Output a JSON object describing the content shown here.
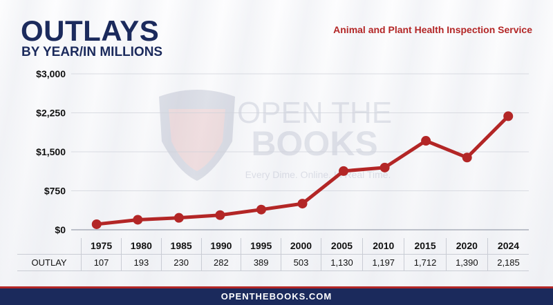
{
  "header": {
    "title": "OUTLAYS",
    "subtitle": "BY YEAR/IN MILLIONS",
    "agency": "Animal and Plant Health Inspection Service"
  },
  "watermark": {
    "line1": "OPEN THE",
    "line2": "BOOKS",
    "tagline": "Every Dime. Online. In Real Time."
  },
  "table": {
    "row_label": "OUTLAY",
    "years": [
      "1975",
      "1980",
      "1985",
      "1990",
      "1995",
      "2000",
      "2005",
      "2010",
      "2015",
      "2020",
      "2024"
    ],
    "values": [
      "107",
      "193",
      "230",
      "282",
      "389",
      "503",
      "1,130",
      "1,197",
      "1,712",
      "1,390",
      "2,185"
    ]
  },
  "footer": {
    "url": "OPENTHEBOOKS.COM"
  },
  "colors": {
    "navy": "#1b2a5c",
    "red": "#b32626",
    "grid": "#cfd2da"
  },
  "chart_data": {
    "type": "line",
    "x": [
      "1975",
      "1980",
      "1985",
      "1990",
      "1995",
      "2000",
      "2005",
      "2010",
      "2015",
      "2020",
      "2024"
    ],
    "series": [
      {
        "values": [
          107,
          193,
          230,
          282,
          389,
          503,
          1130,
          1197,
          1712,
          1390,
          2185
        ]
      }
    ],
    "ylim": [
      0,
      3000
    ],
    "yticks": [
      0,
      750,
      1500,
      2250,
      3000
    ],
    "ytick_labels": [
      "$0",
      "$750",
      "$1,500",
      "$2,250",
      "$3,000"
    ],
    "grid": true,
    "line_color": "#b32626"
  }
}
